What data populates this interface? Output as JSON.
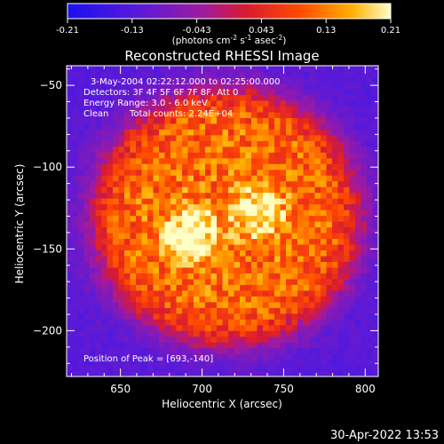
{
  "chart_data": {
    "type": "heatmap",
    "title": "Reconstructed RHESSI Image",
    "xlabel": "Heliocentric X (arcsec)",
    "ylabel": "Heliocentric Y (arcsec)",
    "xlim": [
      617,
      808
    ],
    "ylim": [
      -228,
      -38
    ],
    "x_ticks": [
      650,
      700,
      750,
      800
    ],
    "y_ticks": [
      -50,
      -100,
      -150,
      -200
    ],
    "colorbar": {
      "range": [
        -0.21,
        0.21
      ],
      "ticks": [
        "-0.21",
        "-0.13",
        "-0.043",
        "0.043",
        "0.13",
        "0.21"
      ],
      "unit_prefix": "(photons cm",
      "unit_sup1": "-2",
      "unit_mid1": " s",
      "unit_sup2": "-1",
      "unit_mid2": " asec",
      "unit_sup3": "-2",
      "unit_suffix": ")"
    },
    "annotations": {
      "time_range": "3-May-2004 02:22:12.000 to 02:25:00.000",
      "detectors": "Detectors: 3F 4F 5F 6F 7F 8F, Att 0",
      "energy": "Energy Range: 3.0 - 6.0 keV",
      "method": "Clean",
      "counts": "Total counts: 2.24E+04",
      "peak": "Position of Peak = [693,-140]"
    },
    "sources": [
      {
        "x": 693,
        "y": -140,
        "peak": 0.21
      },
      {
        "x": 735,
        "y": -128,
        "peak": 0.19
      }
    ],
    "disk": {
      "x": 715,
      "y": -130,
      "radius_arcsec": 82,
      "level": 0.11
    },
    "background_level": -0.12
  },
  "footer": {
    "timestamp": "30-Apr-2022 13:53"
  }
}
